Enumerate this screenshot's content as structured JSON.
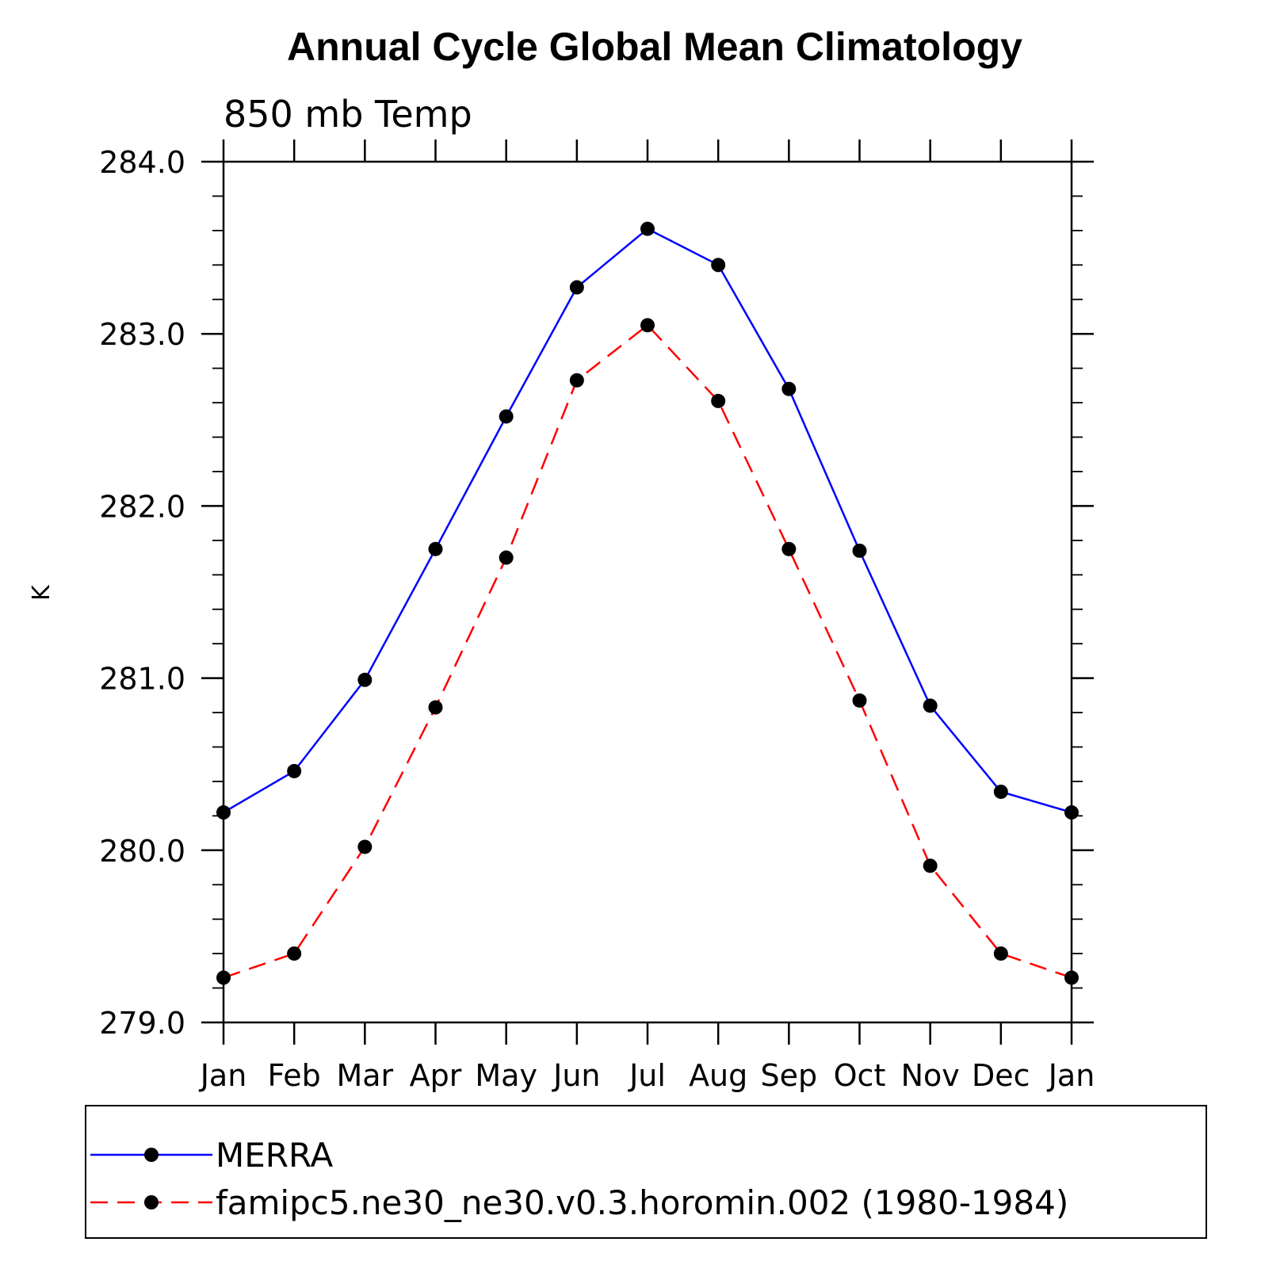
{
  "chart_data": {
    "type": "line",
    "title": "Annual Cycle Global Mean Climatology",
    "subtitle": "850 mb Temp",
    "xlabel": "",
    "ylabel": "K",
    "categories": [
      "Jan",
      "Feb",
      "Mar",
      "Apr",
      "May",
      "Jun",
      "Jul",
      "Aug",
      "Sep",
      "Oct",
      "Nov",
      "Dec",
      "Jan"
    ],
    "ylim": [
      279.0,
      284.0
    ],
    "yticks": [
      279.0,
      280.0,
      281.0,
      282.0,
      283.0,
      284.0
    ],
    "ytick_labels": [
      "279.0",
      "280.0",
      "281.0",
      "282.0",
      "283.0",
      "284.0"
    ],
    "y_minor_step": 0.2,
    "grid": false,
    "legend_position": "bottom",
    "series": [
      {
        "name": "MERRA",
        "color": "#0000ff",
        "line_style": "solid",
        "marker": "filled-circle",
        "values": [
          280.22,
          280.46,
          280.99,
          281.75,
          282.52,
          283.27,
          283.61,
          283.4,
          282.68,
          281.74,
          280.84,
          280.34,
          280.22
        ]
      },
      {
        "name": "famipc5.ne30_ne30.v0.3.horomin.002 (1980-1984)",
        "color": "#ff0000",
        "line_style": "dashed",
        "marker": "filled-circle",
        "values": [
          279.26,
          279.4,
          280.02,
          280.83,
          281.7,
          282.73,
          283.05,
          282.61,
          281.75,
          280.87,
          279.91,
          279.4,
          279.26
        ]
      }
    ]
  }
}
